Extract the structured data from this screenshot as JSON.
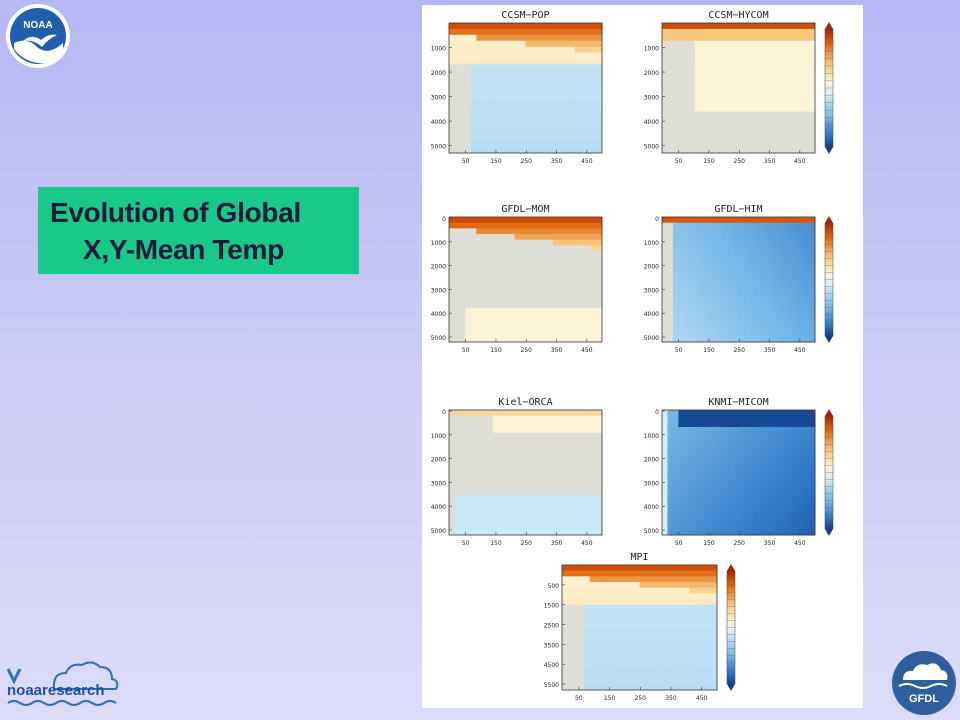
{
  "slide": {
    "title_line1": "Evolution of Global",
    "title_line2": "X,Y-Mean Temp"
  },
  "logos": {
    "noaa": "NOAA",
    "noaa_research": "noaaresearch",
    "gfdl": "GFDL"
  },
  "colors": {
    "title_box": "#18c98a",
    "background_top": "#b7b7f4",
    "background_bottom": "#dcdcf9",
    "warm": "#e0620b",
    "cold": "#1f5fb0",
    "neutral": "#dcdcd6"
  },
  "chart_data": [
    {
      "type": "heatmap",
      "title": "CCSM−POP",
      "x_ticks": [
        "50",
        "150",
        "250",
        "350",
        "450"
      ],
      "y_ticks": [
        "1000",
        "2000",
        "3000",
        "4000",
        "5000"
      ],
      "colorbar": false,
      "pattern": "warm_top_cold_deep"
    },
    {
      "type": "heatmap",
      "title": "CCSM−HYCOM",
      "x_ticks": [
        "50",
        "150",
        "250",
        "350",
        "450"
      ],
      "y_ticks": [
        "1000",
        "2000",
        "3000",
        "4000",
        "5000"
      ],
      "colorbar": true,
      "pattern": "warm_thin_neutral"
    },
    {
      "type": "heatmap",
      "title": "GFDL−MOM",
      "x_ticks": [
        "50",
        "150",
        "250",
        "350",
        "450"
      ],
      "y_ticks": [
        "0",
        "1000",
        "2000",
        "3000",
        "4000",
        "5000"
      ],
      "colorbar": false,
      "pattern": "warm_top_light_deep"
    },
    {
      "type": "heatmap",
      "title": "GFDL−HIM",
      "x_ticks": [
        "50",
        "150",
        "250",
        "350",
        "450"
      ],
      "y_ticks": [
        "0",
        "1000",
        "2000",
        "3000",
        "4000",
        "5000"
      ],
      "colorbar": true,
      "pattern": "thin_warm_cold_below"
    },
    {
      "type": "heatmap",
      "title": "Kiel−ORCA",
      "x_ticks": [
        "50",
        "150",
        "250",
        "350",
        "450"
      ],
      "y_ticks": [
        "0",
        "1000",
        "2000",
        "3000",
        "4000",
        "5000"
      ],
      "colorbar": false,
      "pattern": "light_warm_cold_deep"
    },
    {
      "type": "heatmap",
      "title": "KNMI−MICOM",
      "x_ticks": [
        "50",
        "150",
        "250",
        "350",
        "450"
      ],
      "y_ticks": [
        "0",
        "1000",
        "2000",
        "3000",
        "4000",
        "5000"
      ],
      "colorbar": true,
      "pattern": "strong_cold"
    },
    {
      "type": "heatmap",
      "title": "MPI",
      "x_ticks": [
        "50",
        "150",
        "250",
        "350",
        "450"
      ],
      "y_ticks": [
        "500",
        "1500",
        "2500",
        "3500",
        "4500",
        "5500"
      ],
      "colorbar": true,
      "pattern": "warm_top_cold_deep"
    }
  ]
}
